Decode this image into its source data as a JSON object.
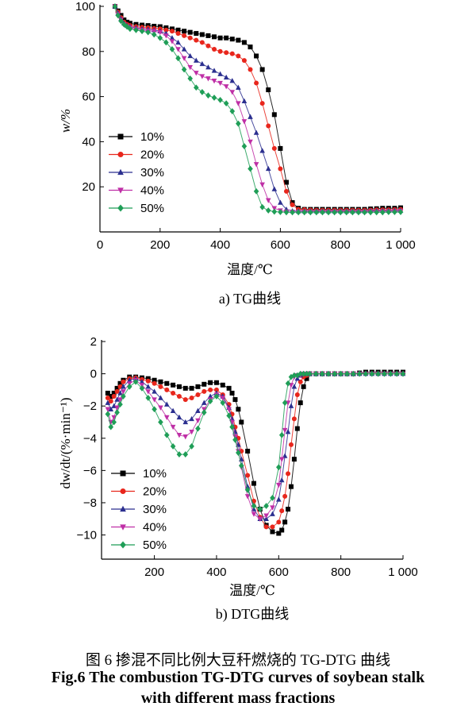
{
  "figure": {
    "caption_cn": "图 6  掺混不同比例大豆秆燃烧的 TG-DTG 曲线",
    "caption_en_line1": "Fig.6 The combustion TG-DTG curves of soybean stalk",
    "caption_en_line2": "with different mass fractions"
  },
  "chart_data": [
    {
      "type": "line",
      "subtitle": "a) TG曲线",
      "xlabel": "温度/℃",
      "ylabel": "w/%",
      "xlim": [
        0,
        1000
      ],
      "ylim": [
        0,
        100
      ],
      "xticks": [
        0,
        200,
        400,
        600,
        800,
        1000
      ],
      "xtick_labels": [
        "0",
        "200",
        "400",
        "600",
        "800",
        "1 000"
      ],
      "yticks": [
        20,
        40,
        60,
        80,
        100
      ],
      "ytick_labels": [
        "20",
        "40",
        "60",
        "80",
        "100"
      ],
      "legend_position": "left-bottom",
      "x": [
        50,
        60,
        70,
        80,
        90,
        100,
        120,
        140,
        160,
        180,
        200,
        220,
        240,
        260,
        280,
        300,
        320,
        340,
        360,
        380,
        400,
        420,
        440,
        460,
        480,
        500,
        520,
        540,
        560,
        580,
        600,
        620,
        640,
        660,
        680,
        700,
        720,
        740,
        760,
        780,
        800,
        820,
        840,
        860,
        880,
        900,
        920,
        940,
        960,
        980,
        1000
      ],
      "series": [
        {
          "name": "10%",
          "color": "#000000",
          "marker": "square",
          "values": [
            100,
            98,
            96,
            94,
            93,
            92.5,
            92,
            91.7,
            91.5,
            91.2,
            91,
            90.5,
            90,
            89.5,
            89,
            88.5,
            88,
            87.5,
            87,
            86.5,
            86,
            86,
            85.5,
            85,
            84,
            82,
            78,
            72,
            63,
            52,
            37,
            22,
            13,
            10.5,
            10,
            10,
            10,
            10,
            10,
            10,
            10,
            10,
            10,
            10,
            10,
            10.2,
            10.3,
            10.5,
            10.5,
            10.5,
            10.7
          ]
        },
        {
          "name": "20%",
          "color": "#e8261c",
          "marker": "circle",
          "values": [
            100,
            97.5,
            95,
            93,
            92,
            91.5,
            91,
            90.7,
            90.5,
            90.2,
            90,
            89.5,
            89,
            88,
            87,
            86,
            85,
            84,
            82.5,
            81,
            80,
            79.5,
            79,
            78,
            76,
            72,
            66,
            57,
            47,
            37,
            28,
            18,
            12,
            10,
            9.8,
            9.7,
            9.6,
            9.6,
            9.6,
            9.6,
            9.6,
            9.6,
            9.6,
            9.6,
            9.6,
            9.7,
            9.8,
            9.8,
            9.8,
            9.9,
            10
          ]
        },
        {
          "name": "30%",
          "color": "#2b2f8f",
          "marker": "triangle-up",
          "values": [
            100,
            97,
            94.5,
            92.5,
            91.5,
            91,
            90.5,
            90,
            89.8,
            89.5,
            89,
            88,
            86,
            84,
            81,
            78,
            76,
            74.5,
            73,
            71.5,
            70,
            68.5,
            67,
            64,
            58,
            51,
            44,
            36,
            28,
            19,
            13,
            10,
            9.3,
            9.2,
            9.2,
            9.2,
            9.2,
            9.2,
            9.2,
            9.2,
            9.2,
            9.2,
            9.2,
            9.2,
            9.2,
            9.3,
            9.4,
            9.4,
            9.4,
            9.5,
            9.5
          ]
        },
        {
          "name": "40%",
          "color": "#bf2fa6",
          "marker": "triangle-down",
          "values": [
            100,
            96.5,
            94,
            92,
            91,
            90.5,
            90,
            89.5,
            89.2,
            89,
            88.5,
            87,
            84.5,
            81,
            77,
            73,
            70.5,
            69,
            68,
            67,
            66,
            64.5,
            62,
            57,
            49,
            40,
            30,
            21,
            14,
            10.5,
            9.5,
            9,
            8.9,
            8.9,
            8.9,
            8.9,
            8.9,
            8.9,
            8.9,
            8.9,
            8.9,
            8.9,
            8.9,
            8.9,
            8.9,
            9,
            9,
            9,
            9.1,
            9.1,
            9.2
          ]
        },
        {
          "name": "50%",
          "color": "#1f9e57",
          "marker": "diamond",
          "values": [
            100,
            96,
            93.5,
            92,
            91,
            90,
            89.5,
            89,
            88.5,
            87.5,
            86,
            84,
            81,
            77,
            72,
            68,
            64,
            62,
            60.5,
            59.5,
            58.5,
            57,
            53.5,
            48,
            38,
            28,
            18,
            11,
            9.5,
            9,
            8.8,
            8.7,
            8.7,
            8.7,
            8.7,
            8.7,
            8.7,
            8.7,
            8.7,
            8.7,
            8.7,
            8.7,
            8.7,
            8.7,
            8.7,
            8.7,
            8.7,
            8.7,
            8.8,
            8.8,
            8.8
          ]
        }
      ]
    },
    {
      "type": "line",
      "subtitle": "b) DTG曲线",
      "xlabel": "温度/℃",
      "ylabel": "dw/dt/(%·min⁻¹)",
      "xlim": [
        30,
        1000
      ],
      "ylim": [
        -11.5,
        2
      ],
      "xticks": [
        200,
        400,
        600,
        800,
        1000
      ],
      "xtick_labels": [
        "200",
        "400",
        "600",
        "800",
        "1 000"
      ],
      "yticks": [
        2,
        0,
        -2,
        -4,
        -6,
        -8,
        -10
      ],
      "ytick_labels": [
        "2",
        "0",
        "−2",
        "−4",
        "−6",
        "−8",
        "−10"
      ],
      "legend_position": "left-bottom",
      "x": [
        50,
        60,
        70,
        80,
        90,
        100,
        120,
        140,
        160,
        180,
        200,
        220,
        240,
        260,
        280,
        300,
        320,
        340,
        360,
        380,
        400,
        420,
        440,
        450,
        460,
        470,
        480,
        500,
        520,
        540,
        560,
        580,
        600,
        610,
        620,
        630,
        640,
        650,
        660,
        670,
        680,
        690,
        700,
        720,
        740,
        760,
        780,
        800,
        820,
        840,
        860,
        880,
        900,
        920,
        940,
        960,
        980,
        1000
      ],
      "series": [
        {
          "name": "10%",
          "color": "#000000",
          "marker": "square",
          "values": [
            -1.2,
            -1.4,
            -1.2,
            -0.9,
            -0.6,
            -0.4,
            -0.2,
            -0.2,
            -0.25,
            -0.3,
            -0.4,
            -0.5,
            -0.6,
            -0.7,
            -0.8,
            -0.9,
            -0.9,
            -0.8,
            -0.65,
            -0.55,
            -0.55,
            -0.7,
            -0.9,
            -1.2,
            -1.6,
            -2.2,
            -3,
            -4.8,
            -6.8,
            -8.4,
            -9.4,
            -9.8,
            -9.9,
            -9.7,
            -9.2,
            -8.4,
            -7,
            -5.3,
            -3.4,
            -1.8,
            -0.8,
            -0.3,
            0,
            0,
            0,
            0,
            0,
            0,
            0,
            0,
            0.05,
            0.1,
            0.1,
            0.1,
            0.1,
            0.1,
            0.1,
            0.1
          ]
        },
        {
          "name": "20%",
          "color": "#e8261c",
          "marker": "circle",
          "values": [
            -1.5,
            -1.7,
            -1.4,
            -1.1,
            -0.8,
            -0.5,
            -0.3,
            -0.25,
            -0.35,
            -0.45,
            -0.6,
            -0.8,
            -1,
            -1.2,
            -1.4,
            -1.6,
            -1.5,
            -1.3,
            -1.1,
            -1,
            -1,
            -1.3,
            -1.9,
            -2.5,
            -3.3,
            -4,
            -4.8,
            -6.3,
            -7.9,
            -8.9,
            -9.5,
            -9.5,
            -9.2,
            -8.5,
            -7.6,
            -6.2,
            -4.4,
            -2.8,
            -1.3,
            -0.5,
            -0.2,
            -0.1,
            0,
            0,
            0,
            0,
            0,
            0,
            0,
            0,
            0,
            0,
            0,
            0,
            0,
            0,
            0,
            0
          ]
        },
        {
          "name": "30%",
          "color": "#2b2f8f",
          "marker": "triangle-up",
          "values": [
            -1.8,
            -2.2,
            -2,
            -1.6,
            -1.2,
            -0.8,
            -0.4,
            -0.3,
            -0.5,
            -0.8,
            -1.1,
            -1.5,
            -1.9,
            -2.3,
            -2.7,
            -3,
            -2.8,
            -2.3,
            -1.8,
            -1.4,
            -1.2,
            -1.4,
            -2.1,
            -2.8,
            -3.6,
            -4.4,
            -5.3,
            -7,
            -8.4,
            -9,
            -9,
            -8.7,
            -7.8,
            -6.6,
            -5.1,
            -3.6,
            -2,
            -0.8,
            -0.3,
            -0.1,
            0,
            0,
            0,
            0,
            0,
            0,
            0,
            0,
            0,
            0,
            0,
            0,
            0,
            0,
            0,
            0,
            0,
            0
          ]
        },
        {
          "name": "40%",
          "color": "#bf2fa6",
          "marker": "triangle-down",
          "values": [
            -2.2,
            -3,
            -2.7,
            -2.1,
            -1.6,
            -1.1,
            -0.6,
            -0.4,
            -0.7,
            -1.1,
            -1.6,
            -2.1,
            -2.7,
            -3.3,
            -3.8,
            -3.9,
            -3.6,
            -2.9,
            -2.2,
            -1.6,
            -1.3,
            -1.5,
            -2.2,
            -3,
            -3.9,
            -4.8,
            -5.8,
            -7.6,
            -8.7,
            -9,
            -8.8,
            -8.3,
            -6.9,
            -5.3,
            -3.5,
            -1.8,
            -0.7,
            -0.2,
            -0.1,
            -0.1,
            0,
            0,
            0,
            0,
            0,
            0,
            0,
            0,
            0,
            0,
            0,
            0,
            0,
            0,
            0,
            0,
            0,
            0
          ]
        },
        {
          "name": "50%",
          "color": "#1f9e57",
          "marker": "diamond",
          "values": [
            -2.5,
            -3.3,
            -3,
            -2.4,
            -1.9,
            -1.4,
            -0.8,
            -0.5,
            -0.9,
            -1.5,
            -2.2,
            -3,
            -3.8,
            -4.5,
            -5,
            -5,
            -4.5,
            -3.4,
            -2.4,
            -1.7,
            -1.4,
            -1.8,
            -2.6,
            -3.3,
            -4.1,
            -4.9,
            -5.7,
            -7.2,
            -8.2,
            -8.4,
            -8.2,
            -7.7,
            -5.8,
            -3.8,
            -1.8,
            -0.6,
            -0.2,
            -0.1,
            -0.1,
            0,
            0,
            0,
            0,
            0,
            0,
            0,
            0,
            0,
            0,
            0,
            0,
            0,
            0,
            0,
            0,
            0,
            0,
            0
          ]
        }
      ]
    }
  ]
}
